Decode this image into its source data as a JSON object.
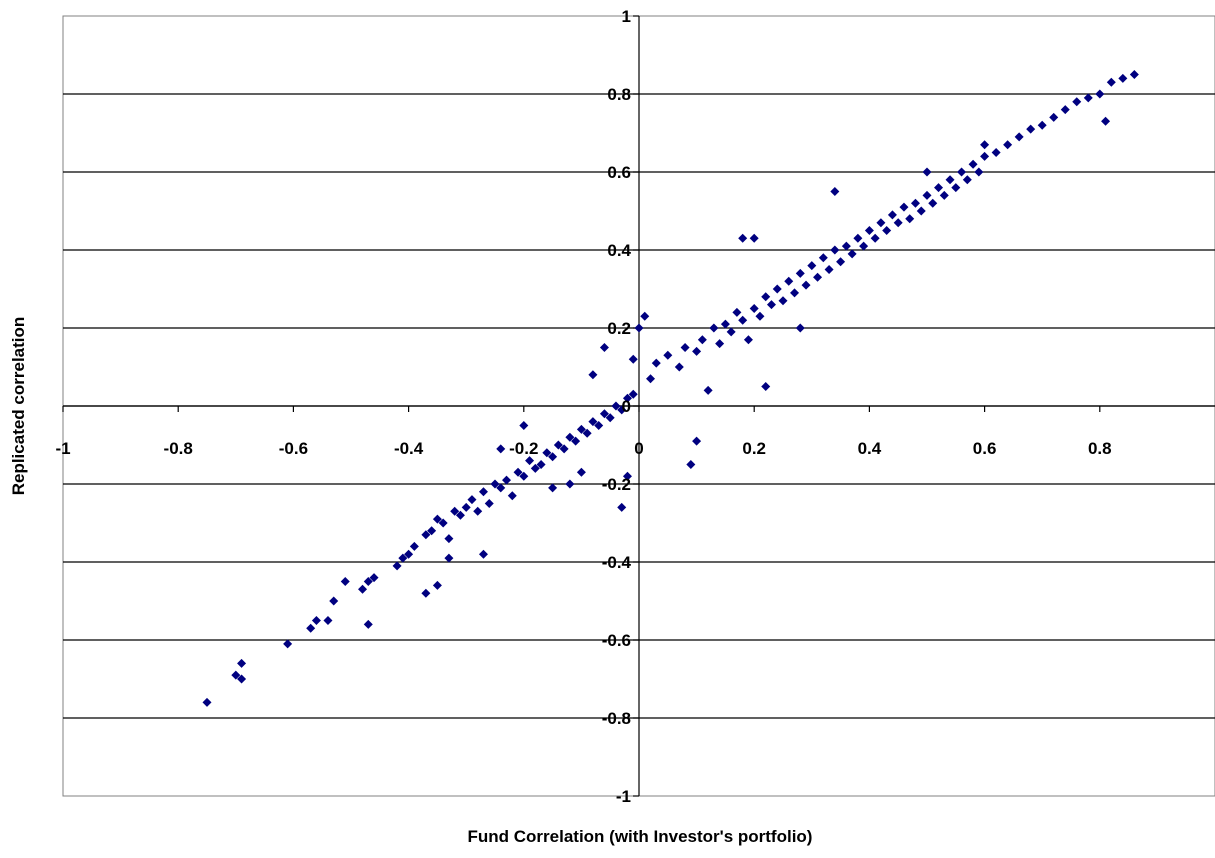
{
  "chart_data": {
    "type": "scatter",
    "title": "",
    "xlabel": "Fund Correlation (with Investor's portfolio)",
    "ylabel": "Replicated correlation",
    "xlim": [
      -1,
      1
    ],
    "ylim": [
      -1,
      1
    ],
    "x_ticks": [
      -1,
      -0.8,
      -0.6,
      -0.4,
      -0.2,
      0,
      0.2,
      0.4,
      0.6,
      0.8
    ],
    "x_tick_labels": [
      "-1",
      "-0.8",
      "-0.6",
      "-0.4",
      "-0.2",
      "0",
      "0.2",
      "0.4",
      "0.6",
      "0.8"
    ],
    "y_ticks": [
      1,
      0.8,
      0.6,
      0.4,
      0.2,
      0,
      -0.2,
      -0.4,
      -0.6,
      -0.8,
      -1
    ],
    "y_tick_labels": [
      "1",
      "0.8",
      "0.6",
      "0.4",
      "0.2",
      "0",
      "-0.2",
      "-0.4",
      "-0.6",
      "-0.8",
      "-1"
    ],
    "grid": "horizontal",
    "legend": "none",
    "marker": "diamond",
    "marker_color": "#000080",
    "series": [
      {
        "points": [
          [
            -0.75,
            -0.76
          ],
          [
            -0.7,
            -0.69
          ],
          [
            -0.69,
            -0.7
          ],
          [
            -0.69,
            -0.66
          ],
          [
            -0.61,
            -0.61
          ],
          [
            -0.57,
            -0.57
          ],
          [
            -0.56,
            -0.55
          ],
          [
            -0.54,
            -0.55
          ],
          [
            -0.53,
            -0.5
          ],
          [
            -0.51,
            -0.45
          ],
          [
            -0.48,
            -0.47
          ],
          [
            -0.47,
            -0.45
          ],
          [
            -0.46,
            -0.44
          ],
          [
            -0.47,
            -0.56
          ],
          [
            -0.42,
            -0.41
          ],
          [
            -0.41,
            -0.39
          ],
          [
            -0.4,
            -0.38
          ],
          [
            -0.39,
            -0.36
          ],
          [
            -0.37,
            -0.33
          ],
          [
            -0.36,
            -0.32
          ],
          [
            -0.35,
            -0.29
          ],
          [
            -0.34,
            -0.3
          ],
          [
            -0.33,
            -0.34
          ],
          [
            -0.32,
            -0.27
          ],
          [
            -0.31,
            -0.28
          ],
          [
            -0.3,
            -0.26
          ],
          [
            -0.29,
            -0.24
          ],
          [
            -0.28,
            -0.27
          ],
          [
            -0.27,
            -0.22
          ],
          [
            -0.26,
            -0.25
          ],
          [
            -0.25,
            -0.2
          ],
          [
            -0.24,
            -0.21
          ],
          [
            -0.23,
            -0.19
          ],
          [
            -0.22,
            -0.23
          ],
          [
            -0.21,
            -0.17
          ],
          [
            -0.2,
            -0.18
          ],
          [
            -0.19,
            -0.14
          ],
          [
            -0.18,
            -0.16
          ],
          [
            -0.17,
            -0.15
          ],
          [
            -0.16,
            -0.12
          ],
          [
            -0.15,
            -0.13
          ],
          [
            -0.14,
            -0.1
          ],
          [
            -0.13,
            -0.11
          ],
          [
            -0.12,
            -0.08
          ],
          [
            -0.11,
            -0.09
          ],
          [
            -0.1,
            -0.06
          ],
          [
            -0.09,
            -0.07
          ],
          [
            -0.08,
            -0.04
          ],
          [
            -0.07,
            -0.05
          ],
          [
            -0.06,
            -0.02
          ],
          [
            -0.05,
            -0.03
          ],
          [
            -0.04,
            0.0
          ],
          [
            -0.03,
            -0.01
          ],
          [
            -0.02,
            0.02
          ],
          [
            -0.01,
            0.03
          ],
          [
            -0.37,
            -0.48
          ],
          [
            -0.35,
            -0.46
          ],
          [
            -0.27,
            -0.38
          ],
          [
            -0.33,
            -0.39
          ],
          [
            -0.24,
            -0.11
          ],
          [
            -0.2,
            -0.05
          ],
          [
            -0.15,
            -0.21
          ],
          [
            -0.12,
            -0.2
          ],
          [
            -0.1,
            -0.17
          ],
          [
            -0.08,
            0.08
          ],
          [
            -0.06,
            0.15
          ],
          [
            -0.03,
            -0.26
          ],
          [
            -0.02,
            -0.18
          ],
          [
            -0.01,
            0.12
          ],
          [
            0.0,
            0.2
          ],
          [
            0.01,
            0.23
          ],
          [
            0.02,
            0.07
          ],
          [
            0.03,
            0.11
          ],
          [
            0.05,
            0.13
          ],
          [
            0.07,
            0.1
          ],
          [
            0.08,
            0.15
          ],
          [
            0.09,
            -0.15
          ],
          [
            0.1,
            0.14
          ],
          [
            0.11,
            0.17
          ],
          [
            0.12,
            0.04
          ],
          [
            0.13,
            0.2
          ],
          [
            0.14,
            0.16
          ],
          [
            0.15,
            0.21
          ],
          [
            0.16,
            0.19
          ],
          [
            0.17,
            0.24
          ],
          [
            0.18,
            0.22
          ],
          [
            0.19,
            0.17
          ],
          [
            0.2,
            0.25
          ],
          [
            0.21,
            0.23
          ],
          [
            0.22,
            0.28
          ],
          [
            0.23,
            0.26
          ],
          [
            0.24,
            0.3
          ],
          [
            0.25,
            0.27
          ],
          [
            0.26,
            0.32
          ],
          [
            0.27,
            0.29
          ],
          [
            0.28,
            0.34
          ],
          [
            0.29,
            0.31
          ],
          [
            0.3,
            0.36
          ],
          [
            0.31,
            0.33
          ],
          [
            0.32,
            0.38
          ],
          [
            0.33,
            0.35
          ],
          [
            0.34,
            0.4
          ],
          [
            0.35,
            0.37
          ],
          [
            0.36,
            0.41
          ],
          [
            0.37,
            0.39
          ],
          [
            0.38,
            0.43
          ],
          [
            0.39,
            0.41
          ],
          [
            0.4,
            0.45
          ],
          [
            0.41,
            0.43
          ],
          [
            0.42,
            0.47
          ],
          [
            0.43,
            0.45
          ],
          [
            0.44,
            0.49
          ],
          [
            0.45,
            0.47
          ],
          [
            0.46,
            0.51
          ],
          [
            0.47,
            0.48
          ],
          [
            0.48,
            0.52
          ],
          [
            0.49,
            0.5
          ],
          [
            0.5,
            0.54
          ],
          [
            0.51,
            0.52
          ],
          [
            0.52,
            0.56
          ],
          [
            0.53,
            0.54
          ],
          [
            0.54,
            0.58
          ],
          [
            0.55,
            0.56
          ],
          [
            0.56,
            0.6
          ],
          [
            0.57,
            0.58
          ],
          [
            0.58,
            0.62
          ],
          [
            0.59,
            0.6
          ],
          [
            0.6,
            0.64
          ],
          [
            0.62,
            0.65
          ],
          [
            0.64,
            0.67
          ],
          [
            0.66,
            0.69
          ],
          [
            0.68,
            0.71
          ],
          [
            0.7,
            0.72
          ],
          [
            0.72,
            0.74
          ],
          [
            0.74,
            0.76
          ],
          [
            0.76,
            0.78
          ],
          [
            0.78,
            0.79
          ],
          [
            0.8,
            0.8
          ],
          [
            0.81,
            0.73
          ],
          [
            0.82,
            0.83
          ],
          [
            0.84,
            0.84
          ],
          [
            0.86,
            0.85
          ],
          [
            0.1,
            -0.09
          ],
          [
            0.22,
            0.05
          ],
          [
            0.28,
            0.2
          ],
          [
            0.18,
            0.43
          ],
          [
            0.2,
            0.43
          ],
          [
            0.34,
            0.55
          ],
          [
            0.5,
            0.6
          ],
          [
            0.6,
            0.67
          ]
        ]
      }
    ]
  }
}
